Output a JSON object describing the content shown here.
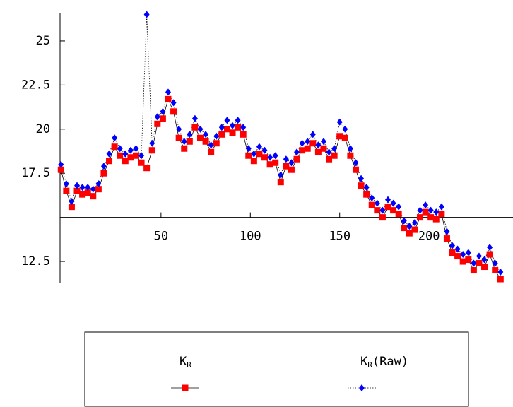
{
  "chart_data": {
    "type": "scatter-line",
    "x": [
      -6,
      -3,
      0,
      3,
      6,
      9,
      12,
      15,
      18,
      21,
      24,
      27,
      30,
      33,
      36,
      39,
      42,
      45,
      48,
      51,
      54,
      57,
      60,
      63,
      66,
      69,
      72,
      75,
      78,
      81,
      84,
      87,
      90,
      93,
      96,
      99,
      102,
      105,
      108,
      111,
      114,
      117,
      120,
      123,
      126,
      129,
      132,
      135,
      138,
      141,
      144,
      147,
      150,
      153,
      156,
      159,
      162,
      165,
      168,
      171,
      174,
      177,
      180,
      183,
      186,
      189,
      192,
      195,
      198,
      201,
      204,
      207,
      210,
      213,
      216,
      219,
      222,
      225,
      228,
      231,
      234,
      237,
      240
    ],
    "series": [
      {
        "name": "K",
        "name_sub": "R",
        "color": "#ff0000",
        "line": "solid",
        "values": [
          17.7,
          16.5,
          15.6,
          16.5,
          16.3,
          16.4,
          16.2,
          16.6,
          17.5,
          18.2,
          19.0,
          18.5,
          18.2,
          18.4,
          18.5,
          18.1,
          17.8,
          18.8,
          20.3,
          20.6,
          21.7,
          21.0,
          19.5,
          18.9,
          19.3,
          20.1,
          19.5,
          19.3,
          18.7,
          19.2,
          19.7,
          20.0,
          19.8,
          20.1,
          19.7,
          18.5,
          18.2,
          18.6,
          18.4,
          18.0,
          18.1,
          17.0,
          17.9,
          17.7,
          18.3,
          18.8,
          18.9,
          19.2,
          18.7,
          18.9,
          18.3,
          18.5,
          19.6,
          19.5,
          18.5,
          17.7,
          16.8,
          16.3,
          15.7,
          15.4,
          15.0,
          15.6,
          15.4,
          15.2,
          14.4,
          14.1,
          14.3,
          15.0,
          15.3,
          15.0,
          14.9,
          15.2,
          13.8,
          13.0,
          12.8,
          12.5,
          12.6,
          12.0,
          12.4,
          12.2,
          12.9,
          12.0,
          11.5
        ]
      },
      {
        "name": "K",
        "name_sub": "R",
        "name_suffix": "(Raw)",
        "color": "#0000ff",
        "line": "dotted",
        "values": [
          18.0,
          16.9,
          15.9,
          16.8,
          16.7,
          16.7,
          16.6,
          16.9,
          17.9,
          18.6,
          19.5,
          18.9,
          18.6,
          18.8,
          18.9,
          18.5,
          26.5,
          19.2,
          20.7,
          21.0,
          22.1,
          21.5,
          20.0,
          19.3,
          19.7,
          20.6,
          20.0,
          19.7,
          19.1,
          19.6,
          20.1,
          20.5,
          20.2,
          20.5,
          20.1,
          18.9,
          18.6,
          19.0,
          18.8,
          18.4,
          18.5,
          17.4,
          18.3,
          18.1,
          18.7,
          19.2,
          19.3,
          19.7,
          19.1,
          19.3,
          18.7,
          18.9,
          20.4,
          20.0,
          18.9,
          18.1,
          17.2,
          16.7,
          16.1,
          15.8,
          15.4,
          16.0,
          15.8,
          15.6,
          14.8,
          14.5,
          14.7,
          15.4,
          15.7,
          15.4,
          15.3,
          15.6,
          14.2,
          13.4,
          13.2,
          12.9,
          13.0,
          12.4,
          12.8,
          12.6,
          13.3,
          12.4,
          11.9
        ]
      }
    ],
    "xlim": [
      -6.5,
      247
    ],
    "ylim": [
      11.3,
      26.6
    ],
    "xcross": 15,
    "xticks": [
      50,
      100,
      150,
      200
    ],
    "yticks": [
      12.5,
      17.5,
      20,
      22.5,
      25
    ]
  }
}
